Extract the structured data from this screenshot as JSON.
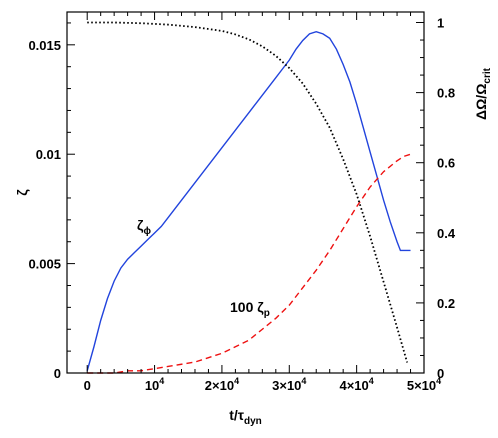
{
  "chart_data": {
    "type": "line",
    "xlabel": "t/τ",
    "xlabel_sub": "dyn",
    "ylabel_left": "ζ",
    "ylabel_right": "ΔΩ/Ω",
    "ylabel_right_sub": "crit",
    "xlim": [
      -3000,
      50000
    ],
    "ylim_left": [
      0,
      0.0165
    ],
    "ylim_right": [
      0,
      1.03
    ],
    "x_ticks": [
      {
        "value": 0,
        "label": "0"
      },
      {
        "value": 10000,
        "label": "10",
        "sup": "4"
      },
      {
        "value": 20000,
        "label": "2×10",
        "sup": "4"
      },
      {
        "value": 30000,
        "label": "3×10",
        "sup": "4"
      },
      {
        "value": 40000,
        "label": "4×10",
        "sup": "4"
      },
      {
        "value": 50000,
        "label": "5×10",
        "sup": "4"
      }
    ],
    "y_left_ticks": [
      {
        "value": 0,
        "label": "0"
      },
      {
        "value": 0.005,
        "label": "0.005"
      },
      {
        "value": 0.01,
        "label": "0.01"
      },
      {
        "value": 0.015,
        "label": "0.015"
      }
    ],
    "y_right_ticks": [
      {
        "value": 0,
        "label": "0"
      },
      {
        "value": 0.2,
        "label": "0.2"
      },
      {
        "value": 0.4,
        "label": "0.4"
      },
      {
        "value": 0.6,
        "label": "0.6"
      },
      {
        "value": 0.8,
        "label": "0.8"
      },
      {
        "value": 1,
        "label": "1"
      }
    ],
    "annotations": [
      {
        "text": "ζ",
        "sub": "ϕ"
      },
      {
        "text": "100 ζ",
        "sub": "p"
      }
    ],
    "series": [
      {
        "key": "zeta_phi",
        "axis": "left",
        "color": "#2244dd",
        "style": "solid",
        "x": [
          0,
          1000,
          2000,
          3000,
          4000,
          5000,
          6000,
          7000,
          8000,
          9000,
          10000,
          11000,
          12000,
          13000,
          14000,
          15000,
          16000,
          17000,
          18000,
          19000,
          20000,
          21000,
          22000,
          23000,
          24000,
          25000,
          26000,
          27000,
          28000,
          29000,
          30000,
          31000,
          32000,
          33000,
          34000,
          35000,
          36000,
          37000,
          38000,
          39000,
          40000,
          41000,
          42000,
          43000,
          44000,
          45000,
          46000,
          46500,
          47000,
          48000
        ],
        "y": [
          0.0001,
          0.0012,
          0.0024,
          0.0034,
          0.0042,
          0.0048,
          0.0052,
          0.0055,
          0.0058,
          0.0061,
          0.0064,
          0.0067,
          0.0071,
          0.0075,
          0.0079,
          0.0083,
          0.0087,
          0.0091,
          0.0095,
          0.0099,
          0.0103,
          0.0107,
          0.0111,
          0.0115,
          0.0119,
          0.0123,
          0.0127,
          0.0131,
          0.0135,
          0.0139,
          0.0143,
          0.0148,
          0.0152,
          0.0155,
          0.0156,
          0.0155,
          0.0153,
          0.0148,
          0.0141,
          0.0133,
          0.0123,
          0.0112,
          0.0101,
          0.009,
          0.0079,
          0.0069,
          0.006,
          0.0056,
          0.0056,
          0.0056
        ]
      },
      {
        "key": "zeta_p_x100",
        "axis": "left",
        "color": "#ee1111",
        "style": "dashed",
        "x": [
          0,
          2000,
          4000,
          6000,
          8000,
          10000,
          12000,
          14000,
          16000,
          18000,
          20000,
          22000,
          24000,
          26000,
          28000,
          30000,
          32000,
          34000,
          36000,
          38000,
          40000,
          42000,
          44000,
          46000,
          47000,
          48000
        ],
        "y": [
          0.0,
          0.0,
          0.0,
          0.0001,
          0.0001,
          0.0002,
          0.0003,
          0.0004,
          0.0005,
          0.0007,
          0.0009,
          0.0012,
          0.0015,
          0.002,
          0.0025,
          0.0031,
          0.0039,
          0.0047,
          0.0056,
          0.0066,
          0.0076,
          0.0085,
          0.0092,
          0.0097,
          0.0099,
          0.01
        ]
      },
      {
        "key": "delta_omega",
        "axis": "right",
        "color": "#000000",
        "style": "dotted",
        "x": [
          0,
          4000,
          8000,
          12000,
          16000,
          20000,
          22000,
          24000,
          26000,
          28000,
          30000,
          32000,
          34000,
          36000,
          38000,
          40000,
          42000,
          44000,
          46000,
          47500
        ],
        "y": [
          1.0,
          1.0,
          0.998,
          0.994,
          0.987,
          0.976,
          0.966,
          0.952,
          0.932,
          0.905,
          0.87,
          0.826,
          0.768,
          0.7,
          0.61,
          0.51,
          0.39,
          0.26,
          0.13,
          0.03
        ]
      }
    ]
  }
}
